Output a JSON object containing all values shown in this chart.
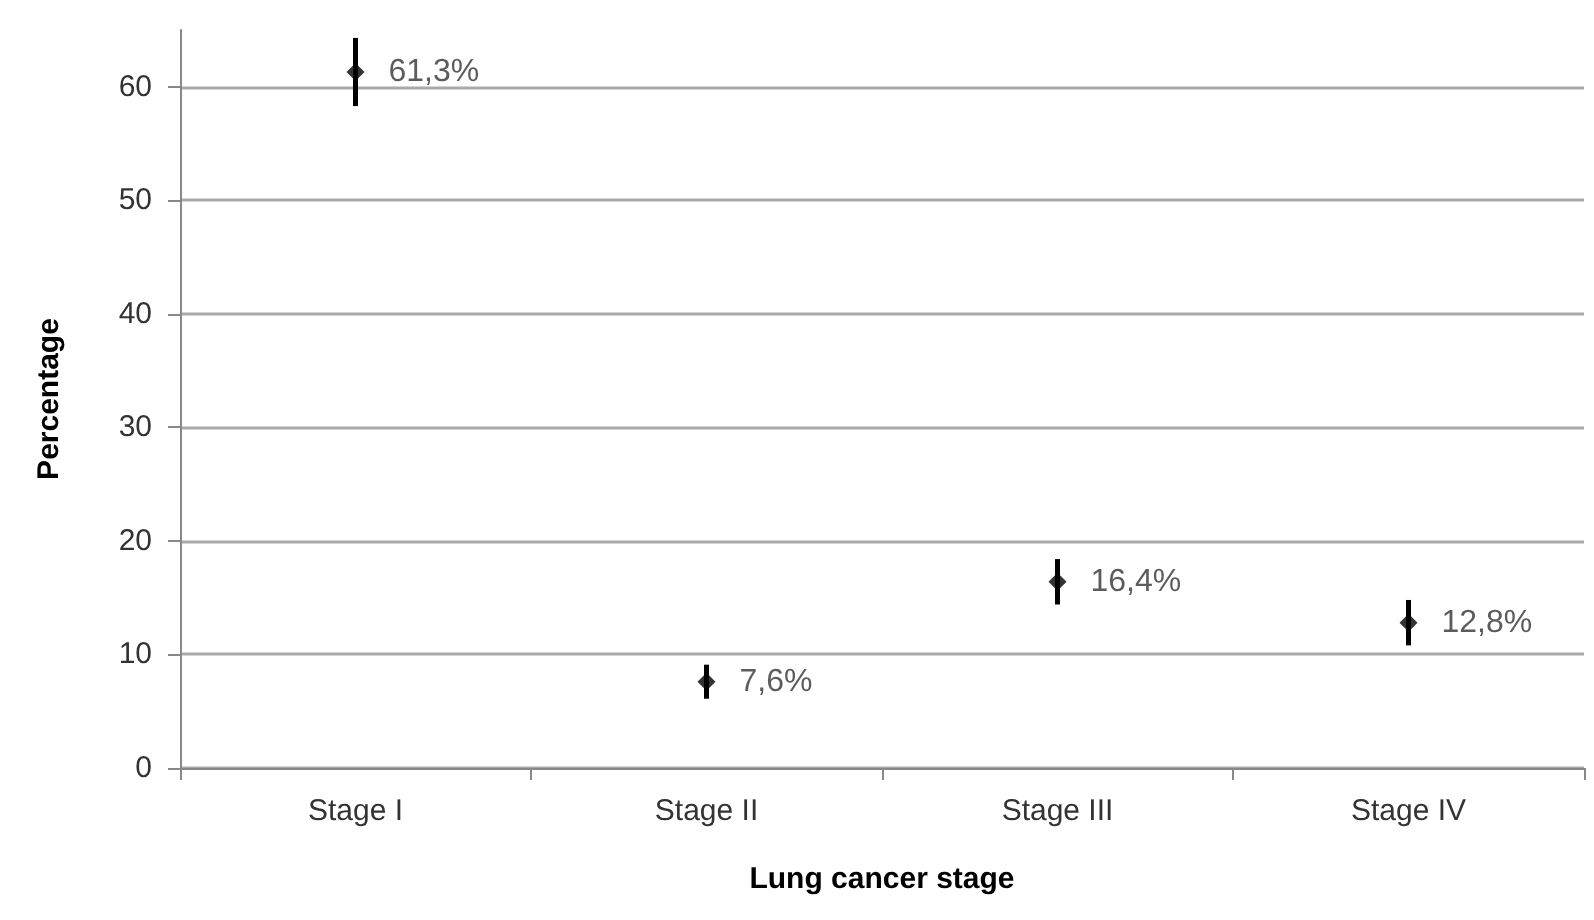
{
  "chart_data": {
    "type": "scatter",
    "xlabel": "Lung cancer stage",
    "ylabel": "Percentage",
    "categories": [
      "Stage I",
      "Stage II",
      "Stage III",
      "Stage IV"
    ],
    "values": [
      61.3,
      7.6,
      16.4,
      12.8
    ],
    "errors": [
      3,
      1.5,
      2,
      2
    ],
    "value_labels": [
      "61,3%",
      "7,6%",
      "16,4%",
      "12,8%"
    ],
    "color": "#000000",
    "marker": "diamond",
    "ylim": [
      0,
      65
    ],
    "yticks": [
      0,
      10,
      20,
      30,
      40,
      50,
      60
    ],
    "grid": "y"
  }
}
